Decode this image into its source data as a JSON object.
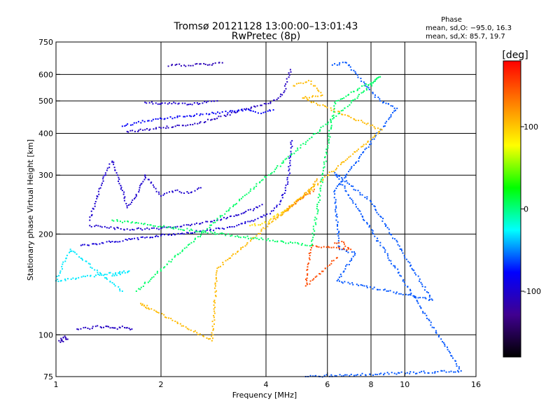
{
  "chart_data": {
    "type": "scatter",
    "title": "Tromsø 20121128 13:00:00–13:01:43",
    "subtitle": "RwPretec (8p)",
    "xlabel": "Frequency [MHz]",
    "ylabel": "Stationary phase Virtual Height [km]",
    "x_scale": "log",
    "y_scale": "log",
    "xlim": [
      1,
      16
    ],
    "ylim": [
      75,
      750
    ],
    "x_ticks": [
      1,
      2,
      4,
      6,
      8,
      10,
      16
    ],
    "y_ticks": [
      75,
      100,
      200,
      300,
      400,
      500,
      600,
      750
    ],
    "x_grid": [
      2,
      4,
      6,
      8,
      10
    ],
    "y_grid": [
      100,
      200,
      300,
      400,
      500,
      600
    ],
    "grid": true,
    "stats": {
      "heading": "Phase",
      "line_o": "mean, sd,O: −95.0, 16.3",
      "line_x": "mean, sd,X:  85.7, 19.7"
    },
    "colorbar": {
      "label": "[deg]",
      "range": [
        -180,
        180
      ],
      "ticks": [
        100,
        0,
        -100
      ],
      "colors": [
        "#ff0000",
        "#ff8000",
        "#ffff00",
        "#00ff00",
        "#00ffff",
        "#0000ff",
        "#400090",
        "#000000"
      ]
    },
    "series": [
      {
        "points": [
          [
            1.02,
            96
          ],
          [
            1.05,
            98
          ],
          [
            1.08,
            97
          ],
          [
            1.03,
            95
          ],
          [
            1.06,
            99
          ]
        ],
        "phase": -110
      },
      {
        "points": [
          [
            1.15,
            104
          ],
          [
            1.2,
            105
          ],
          [
            1.25,
            104
          ],
          [
            1.3,
            106
          ],
          [
            1.35,
            105
          ],
          [
            1.4,
            106
          ],
          [
            1.45,
            105
          ],
          [
            1.5,
            104
          ],
          [
            1.55,
            106
          ],
          [
            1.6,
            105
          ],
          [
            1.65,
            104
          ]
        ],
        "phase": -105
      },
      {
        "points": [
          [
            1.18,
            185
          ],
          [
            1.3,
            187
          ],
          [
            1.45,
            190
          ],
          [
            1.6,
            192
          ],
          [
            1.8,
            195
          ],
          [
            2.0,
            198
          ],
          [
            2.3,
            201
          ],
          [
            2.6,
            204
          ],
          [
            3.0,
            208
          ],
          [
            3.3,
            212
          ],
          [
            3.6,
            218
          ],
          [
            3.9,
            225
          ],
          [
            4.2,
            235
          ],
          [
            4.4,
            250
          ],
          [
            4.55,
            270
          ],
          [
            4.65,
            300
          ],
          [
            4.7,
            340
          ],
          [
            4.75,
            380
          ]
        ],
        "phase": -95
      },
      {
        "points": [
          [
            1.25,
            212
          ],
          [
            1.4,
            209
          ],
          [
            1.6,
            207
          ],
          [
            1.8,
            207
          ],
          [
            2.0,
            208
          ],
          [
            2.2,
            210
          ],
          [
            2.5,
            214
          ],
          [
            2.8,
            218
          ],
          [
            3.1,
            224
          ],
          [
            3.4,
            230
          ],
          [
            3.7,
            238
          ],
          [
            3.9,
            245
          ]
        ],
        "phase": -100
      },
      {
        "points": [
          [
            3.6,
            212
          ],
          [
            3.9,
            215
          ],
          [
            4.1,
            220
          ],
          [
            4.3,
            228
          ],
          [
            4.6,
            238
          ],
          [
            4.9,
            250
          ],
          [
            5.2,
            262
          ],
          [
            5.5,
            278
          ]
        ],
        "phase": 90
      },
      {
        "points": [
          [
            4.2,
            222
          ],
          [
            4.5,
            232
          ],
          [
            4.8,
            245
          ],
          [
            5.1,
            258
          ],
          [
            5.4,
            275
          ],
          [
            5.6,
            292
          ]
        ],
        "phase": 110
      },
      {
        "points": [
          [
            4.6,
            235
          ],
          [
            4.9,
            250
          ],
          [
            5.2,
            262
          ],
          [
            5.5,
            272
          ]
        ],
        "phase": 140
      },
      {
        "points": [
          [
            1.25,
            220
          ],
          [
            1.3,
            250
          ],
          [
            1.35,
            280
          ],
          [
            1.4,
            310
          ],
          [
            1.45,
            330
          ],
          [
            1.5,
            300
          ],
          [
            1.55,
            270
          ],
          [
            1.6,
            240
          ],
          [
            1.7,
            260
          ],
          [
            1.8,
            300
          ],
          [
            1.9,
            280
          ],
          [
            2.0,
            260
          ],
          [
            2.2,
            270
          ],
          [
            2.4,
            265
          ],
          [
            2.6,
            275
          ]
        ],
        "phase": -100
      },
      {
        "points": [
          [
            1.6,
            405
          ],
          [
            1.8,
            410
          ],
          [
            2.0,
            415
          ],
          [
            2.2,
            420
          ],
          [
            2.5,
            428
          ],
          [
            2.8,
            440
          ],
          [
            3.1,
            455
          ],
          [
            3.4,
            470
          ],
          [
            3.7,
            482
          ],
          [
            4.0,
            490
          ],
          [
            4.3,
            505
          ],
          [
            4.5,
            530
          ],
          [
            4.6,
            570
          ],
          [
            4.7,
            620
          ]
        ],
        "phase": -105
      },
      {
        "points": [
          [
            1.8,
            495
          ],
          [
            2.0,
            490
          ],
          [
            2.2,
            492
          ],
          [
            2.4,
            488
          ],
          [
            2.7,
            495
          ],
          [
            2.9,
            500
          ]
        ],
        "phase": -100
      },
      {
        "points": [
          [
            2.1,
            635
          ],
          [
            2.2,
            640
          ],
          [
            2.4,
            638
          ],
          [
            2.6,
            645
          ],
          [
            2.8,
            640
          ],
          [
            3.0,
            650
          ]
        ],
        "phase": -110
      },
      {
        "points": [
          [
            1.55,
            420
          ],
          [
            1.7,
            430
          ],
          [
            1.9,
            440
          ],
          [
            3.5,
            470
          ],
          [
            3.8,
            460
          ],
          [
            4.2,
            470
          ]
        ],
        "phase": -80
      },
      {
        "points": [
          [
            6.2,
            640
          ],
          [
            6.8,
            650
          ],
          [
            8.5,
            500
          ],
          [
            9.5,
            475
          ],
          [
            6.3,
            270
          ],
          [
            6.5,
            180
          ],
          [
            7.2,
            175
          ],
          [
            6.4,
            145
          ],
          [
            12.0,
            127
          ],
          [
            8.0,
            250
          ],
          [
            6.3,
            305
          ],
          [
            14.5,
            78
          ],
          [
            5.2,
            75
          ]
        ],
        "phase": -60
      },
      {
        "points": [
          [
            6.3,
            188
          ],
          [
            6.6,
            190
          ],
          [
            7.0,
            180
          ],
          [
            5.4,
            185
          ],
          [
            5.2,
            140
          ],
          [
            6.4,
            170
          ]
        ],
        "phase": 150
      },
      {
        "points": [
          [
            4.8,
            555
          ],
          [
            5.3,
            575
          ],
          [
            5.6,
            545
          ],
          [
            5.8,
            520
          ],
          [
            5.1,
            510
          ],
          [
            8.6,
            410
          ],
          [
            2.9,
            158
          ],
          [
            2.8,
            96
          ],
          [
            1.75,
            124
          ],
          [
            1.82,
            120
          ]
        ],
        "phase": 105
      },
      {
        "points": [
          [
            1.7,
            135
          ],
          [
            8.5,
            590
          ],
          [
            6.3,
            495
          ],
          [
            5.4,
            185
          ],
          [
            1.45,
            220
          ]
        ],
        "phase": 5
      },
      {
        "points": [
          [
            1.45,
            150
          ],
          [
            1.62,
            155
          ],
          [
            1.0,
            145
          ],
          [
            1.1,
            180
          ],
          [
            1.55,
            135
          ]
        ],
        "phase": -30
      }
    ]
  }
}
